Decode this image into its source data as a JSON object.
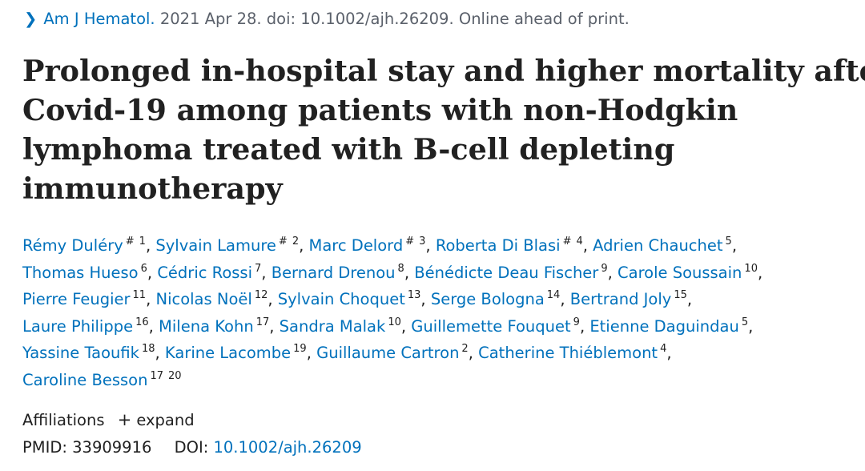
{
  "citation": {
    "chevron_icon": "chevron-right-icon",
    "journal": "Am J Hematol.",
    "details": " 2021 Apr 28. doi: 10.1002/ajh.26209. Online ahead of print."
  },
  "title_lines": [
    "Prolonged in-hospital stay and higher mortality after",
    "Covid-19 among patients with non-Hodgkin",
    "lymphoma treated with B-cell depleting",
    "immunotherapy"
  ],
  "authors": [
    {
      "name": "Rémy Duléry",
      "mark": "#",
      "affils": [
        "1"
      ]
    },
    {
      "name": "Sylvain Lamure",
      "mark": "#",
      "affils": [
        "2"
      ]
    },
    {
      "name": "Marc Delord",
      "mark": "#",
      "affils": [
        "3"
      ]
    },
    {
      "name": "Roberta Di Blasi",
      "mark": "#",
      "affils": [
        "4"
      ]
    },
    {
      "name": "Adrien Chauchet",
      "affils": [
        "5"
      ]
    },
    {
      "name": "Thomas Hueso",
      "affils": [
        "6"
      ]
    },
    {
      "name": "Cédric Rossi",
      "affils": [
        "7"
      ]
    },
    {
      "name": "Bernard Drenou",
      "affils": [
        "8"
      ]
    },
    {
      "name": "Bénédicte Deau Fischer",
      "affils": [
        "9"
      ]
    },
    {
      "name": "Carole Soussain",
      "affils": [
        "10"
      ]
    },
    {
      "name": "Pierre Feugier",
      "affils": [
        "11"
      ]
    },
    {
      "name": "Nicolas Noël",
      "affils": [
        "12"
      ]
    },
    {
      "name": "Sylvain Choquet",
      "affils": [
        "13"
      ]
    },
    {
      "name": "Serge Bologna",
      "affils": [
        "14"
      ]
    },
    {
      "name": "Bertrand Joly",
      "affils": [
        "15"
      ]
    },
    {
      "name": "Laure Philippe",
      "affils": [
        "16"
      ]
    },
    {
      "name": "Milena Kohn",
      "affils": [
        "17"
      ]
    },
    {
      "name": "Sandra Malak",
      "affils": [
        "10"
      ]
    },
    {
      "name": "Guillemette Fouquet",
      "affils": [
        "9"
      ]
    },
    {
      "name": "Etienne Daguindau",
      "affils": [
        "5"
      ]
    },
    {
      "name": "Yassine Taoufik",
      "affils": [
        "18"
      ]
    },
    {
      "name": "Karine Lacombe",
      "affils": [
        "19"
      ]
    },
    {
      "name": "Guillaume Cartron",
      "affils": [
        "2"
      ]
    },
    {
      "name": "Catherine Thiéblemont",
      "affils": [
        "4"
      ]
    },
    {
      "name": "Caroline Besson",
      "affils": [
        "17",
        "20"
      ]
    }
  ],
  "affiliations": {
    "label": "Affiliations",
    "expand_icon": "plus-icon",
    "expand_label": "expand"
  },
  "ids": {
    "pmid_label": "PMID:",
    "pmid": "33909916",
    "doi_label": "DOI:",
    "doi": "10.1002/ajh.26209"
  },
  "colors": {
    "link": "#0071bc",
    "text": "#212121",
    "muted": "#5b616b"
  }
}
